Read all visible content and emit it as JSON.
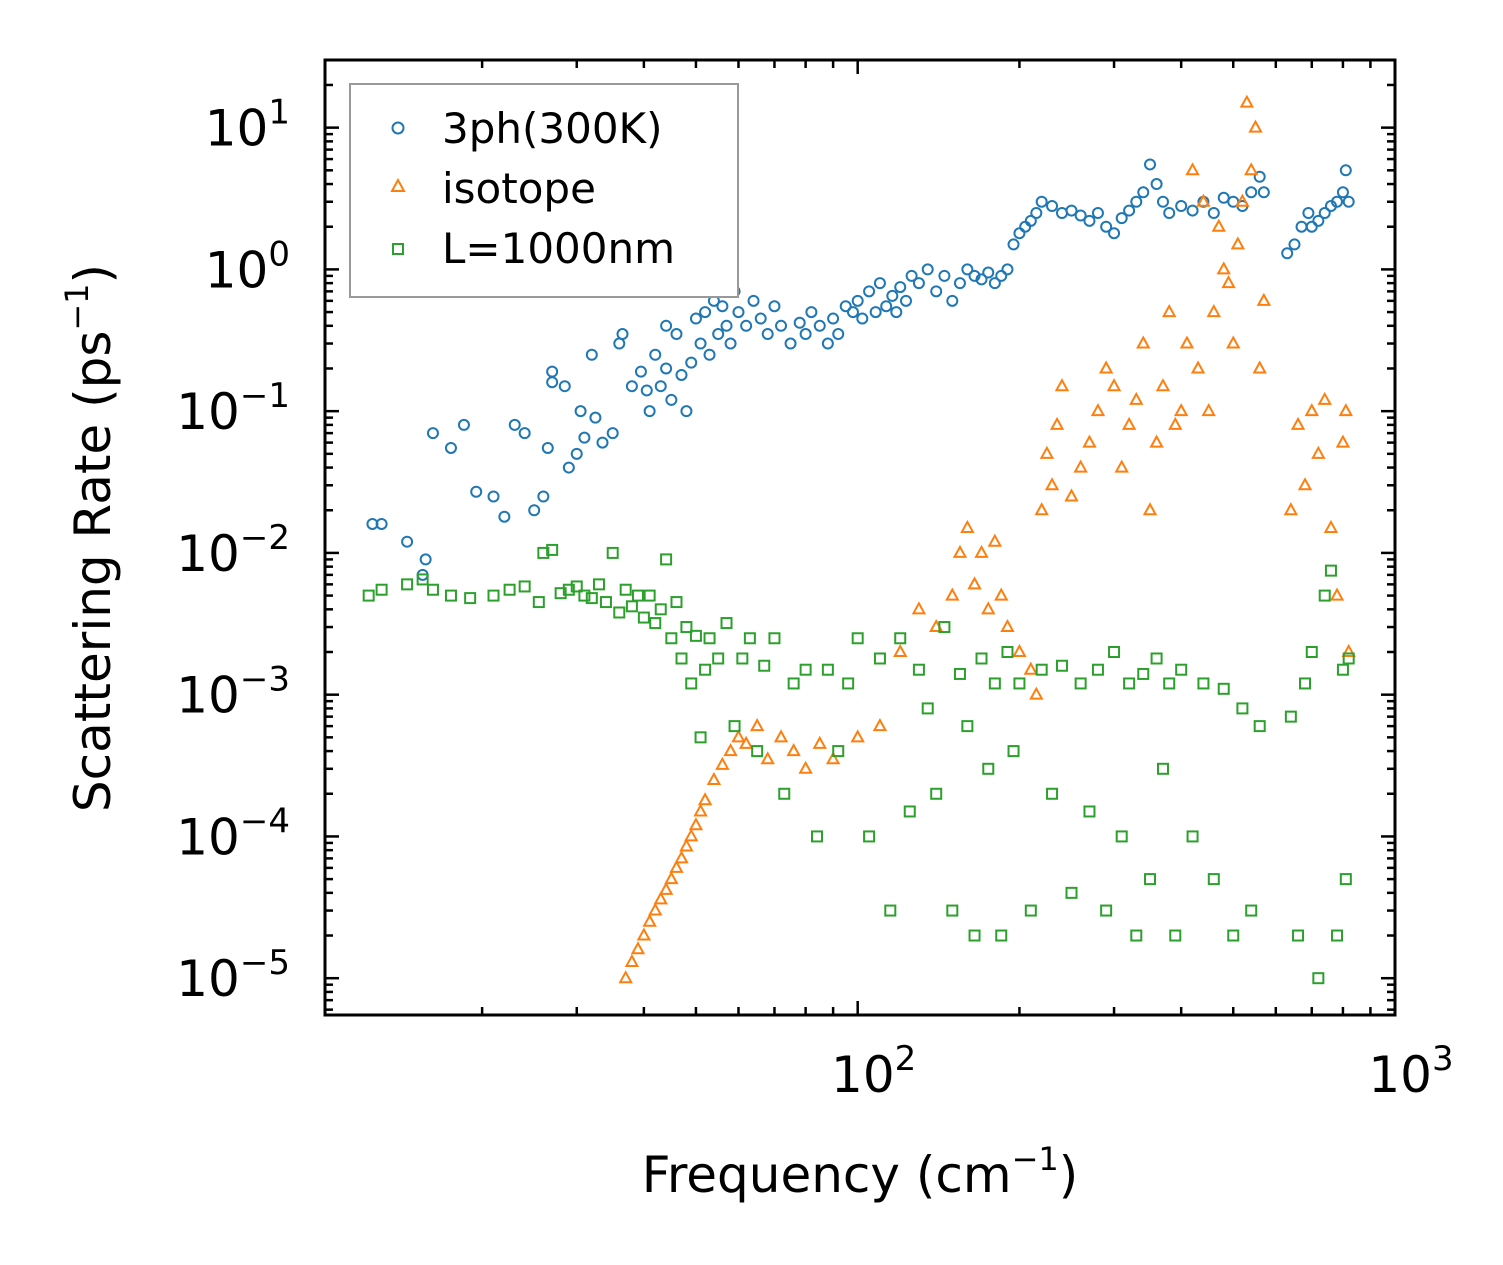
{
  "chart_data": {
    "type": "scatter",
    "title": "",
    "xlabel": "Frequency (cm",
    "xlabel_sup": "−1",
    "xlabel_end": ")",
    "ylabel": "Scattering Rate (ps",
    "ylabel_sup": "−1",
    "ylabel_end": ")",
    "xscale": "log",
    "yscale": "log",
    "xlim": [
      10.2,
      1000
    ],
    "ylim": [
      5.5e-06,
      30
    ],
    "x_ticks": [
      {
        "value": 100,
        "base": "10",
        "exp": "2"
      },
      {
        "value": 1000,
        "base": "10",
        "exp": "3"
      }
    ],
    "y_ticks": [
      {
        "value": 10,
        "base": "10",
        "exp": "1"
      },
      {
        "value": 1,
        "base": "10",
        "exp": "0"
      },
      {
        "value": 0.1,
        "base": "10",
        "exp": "−1"
      },
      {
        "value": 0.01,
        "base": "10",
        "exp": "−2"
      },
      {
        "value": 0.001,
        "base": "10",
        "exp": "−3"
      },
      {
        "value": 0.0001,
        "base": "10",
        "exp": "−4"
      },
      {
        "value": 1e-05,
        "base": "10",
        "exp": "−5"
      }
    ],
    "legend": {
      "location": "top-left",
      "entries": [
        "3ph(300K)",
        "isotope",
        "L=1000nm"
      ]
    },
    "series": [
      {
        "name": "3ph(300K)",
        "marker": "circle",
        "color": "#1f77b4",
        "x": [
          12.5,
          13.0,
          14.5,
          15.5,
          15.7,
          16.2,
          17.5,
          18.5,
          19.5,
          21.0,
          22.0,
          23.0,
          24.0,
          25.0,
          26.0,
          26.5,
          27.0,
          27.0,
          28.5,
          29.0,
          30.0,
          30.5,
          31.0,
          32.0,
          32.5,
          33.5,
          35.0,
          36.0,
          36.5,
          38.0,
          39.5,
          40.5,
          41.0,
          42.0,
          43.0,
          44.0,
          44.0,
          45.0,
          46.0,
          47.0,
          48.0,
          49.0,
          50.0,
          51.0,
          52.0,
          53.0,
          54.0,
          55.0,
          56.0,
          57.0,
          58.0,
          59.0,
          60.0,
          62.0,
          64.0,
          66.0,
          68.0,
          70.0,
          72.0,
          75.0,
          78.0,
          80.0,
          82.0,
          85.0,
          88.0,
          90.0,
          92.0,
          95.0,
          98.0,
          100.0,
          102.0,
          105.0,
          108.0,
          110.0,
          113.0,
          116.0,
          118.0,
          120.0,
          123.0,
          126.0,
          130.0,
          135.0,
          140.0,
          145.0,
          150.0,
          155.0,
          160.0,
          165.0,
          170.0,
          175.0,
          180.0,
          185.0,
          190.0,
          195.0,
          200.0,
          205.0,
          210.0,
          215.0,
          220.0,
          230.0,
          240.0,
          250.0,
          260.0,
          270.0,
          280.0,
          290.0,
          300.0,
          310.0,
          320.0,
          330.0,
          340.0,
          350.0,
          360.0,
          370.0,
          380.0,
          400.0,
          420.0,
          440.0,
          460.0,
          480.0,
          500.0,
          520.0,
          540.0,
          560.0,
          570.0,
          630.0,
          650.0,
          670.0,
          690.0,
          700.0,
          720.0,
          740.0,
          760.0,
          780.0,
          800.0,
          810.0,
          820.0
        ],
        "y": [
          0.016,
          0.016,
          0.012,
          0.007,
          0.009,
          0.07,
          0.055,
          0.08,
          0.027,
          0.025,
          0.018,
          0.08,
          0.07,
          0.02,
          0.025,
          0.055,
          0.19,
          0.16,
          0.15,
          0.04,
          0.05,
          0.1,
          0.065,
          0.25,
          0.09,
          0.06,
          0.07,
          0.3,
          0.35,
          0.15,
          0.19,
          0.14,
          0.1,
          0.25,
          0.15,
          0.2,
          0.4,
          0.12,
          0.35,
          0.18,
          0.1,
          0.22,
          0.45,
          0.3,
          0.5,
          0.25,
          0.6,
          0.35,
          0.55,
          0.4,
          0.3,
          0.7,
          0.5,
          0.4,
          0.6,
          0.45,
          0.35,
          0.55,
          0.4,
          0.3,
          0.42,
          0.35,
          0.5,
          0.4,
          0.3,
          0.45,
          0.35,
          0.55,
          0.5,
          0.6,
          0.45,
          0.7,
          0.5,
          0.8,
          0.55,
          0.65,
          0.5,
          0.75,
          0.6,
          0.9,
          0.8,
          1.0,
          0.7,
          0.9,
          0.6,
          0.8,
          1.0,
          0.9,
          0.85,
          0.95,
          0.8,
          0.9,
          1.0,
          1.5,
          1.8,
          2.0,
          2.2,
          2.5,
          3.0,
          2.8,
          2.5,
          2.6,
          2.4,
          2.2,
          2.5,
          2.0,
          1.8,
          2.3,
          2.6,
          3.0,
          3.5,
          5.5,
          4.0,
          3.0,
          2.5,
          2.8,
          2.6,
          3.0,
          2.5,
          3.2,
          3.0,
          2.8,
          3.5,
          4.5,
          3.5,
          1.3,
          1.5,
          2.0,
          2.5,
          2.0,
          2.2,
          2.5,
          2.8,
          3.0,
          3.5,
          5.0,
          3.0
        ]
      },
      {
        "name": "isotope",
        "marker": "triangle",
        "color": "#ff7f0e",
        "x": [
          37.0,
          38.0,
          39.0,
          40.0,
          41.0,
          42.0,
          43.0,
          44.0,
          45.0,
          46.0,
          47.0,
          48.0,
          49.0,
          50.0,
          51.0,
          52.0,
          54.0,
          56.0,
          58.0,
          60.0,
          62.0,
          65.0,
          68.0,
          72.0,
          76.0,
          80.0,
          85.0,
          90.0,
          100.0,
          110.0,
          120.0,
          130.0,
          140.0,
          150.0,
          155.0,
          160.0,
          165.0,
          170.0,
          175.0,
          180.0,
          185.0,
          190.0,
          200.0,
          210.0,
          215.0,
          220.0,
          225.0,
          230.0,
          235.0,
          240.0,
          250.0,
          260.0,
          270.0,
          280.0,
          290.0,
          300.0,
          310.0,
          320.0,
          330.0,
          340.0,
          350.0,
          360.0,
          370.0,
          380.0,
          390.0,
          400.0,
          410.0,
          420.0,
          430.0,
          440.0,
          450.0,
          460.0,
          470.0,
          480.0,
          490.0,
          500.0,
          510.0,
          520.0,
          530.0,
          540.0,
          550.0,
          560.0,
          570.0,
          640.0,
          660.0,
          680.0,
          700.0,
          720.0,
          740.0,
          760.0,
          780.0,
          800.0,
          810.0,
          820.0
        ],
        "y": [
          1e-05,
          1.3e-05,
          1.6e-05,
          2e-05,
          2.5e-05,
          3e-05,
          3.6e-05,
          4.2e-05,
          5e-05,
          6e-05,
          7e-05,
          8.5e-05,
          0.0001,
          0.00012,
          0.00015,
          0.00018,
          0.00025,
          0.00032,
          0.0004,
          0.0005,
          0.00045,
          0.0006,
          0.00035,
          0.0005,
          0.0004,
          0.0003,
          0.00045,
          0.00035,
          0.0005,
          0.0006,
          0.002,
          0.004,
          0.003,
          0.005,
          0.01,
          0.015,
          0.006,
          0.01,
          0.004,
          0.012,
          0.005,
          0.003,
          0.002,
          0.0015,
          0.001,
          0.02,
          0.05,
          0.03,
          0.08,
          0.15,
          0.025,
          0.04,
          0.06,
          0.1,
          0.2,
          0.15,
          0.04,
          0.08,
          0.12,
          0.3,
          0.02,
          0.06,
          0.15,
          0.5,
          0.08,
          0.1,
          0.3,
          5.0,
          0.2,
          3.0,
          0.1,
          0.5,
          2.0,
          1.0,
          0.8,
          0.3,
          1.5,
          3.0,
          15.0,
          5.0,
          10.0,
          0.2,
          0.6,
          0.02,
          0.08,
          0.03,
          0.1,
          0.05,
          0.12,
          0.015,
          0.005,
          0.06,
          0.1,
          0.002
        ]
      },
      {
        "name": "L=1000nm",
        "marker": "square",
        "color": "#2ca02c",
        "x": [
          12.3,
          13.0,
          14.5,
          15.5,
          16.2,
          17.5,
          19.0,
          21.0,
          22.5,
          24.0,
          25.5,
          26.0,
          27.0,
          28.0,
          29.0,
          30.0,
          31.0,
          32.0,
          33.0,
          34.0,
          35.0,
          36.0,
          37.0,
          38.0,
          39.0,
          40.0,
          41.0,
          42.0,
          43.0,
          44.0,
          45.0,
          46.0,
          47.0,
          48.0,
          49.0,
          50.0,
          51.0,
          52.0,
          53.0,
          55.0,
          57.0,
          59.0,
          61.0,
          63.0,
          65.0,
          67.0,
          70.0,
          73.0,
          76.0,
          80.0,
          84.0,
          88.0,
          92.0,
          96.0,
          100.0,
          105.0,
          110.0,
          115.0,
          120.0,
          125.0,
          130.0,
          135.0,
          140.0,
          145.0,
          150.0,
          155.0,
          160.0,
          165.0,
          170.0,
          175.0,
          180.0,
          185.0,
          190.0,
          195.0,
          200.0,
          210.0,
          220.0,
          230.0,
          240.0,
          250.0,
          260.0,
          270.0,
          280.0,
          290.0,
          300.0,
          310.0,
          320.0,
          330.0,
          340.0,
          350.0,
          360.0,
          370.0,
          380.0,
          390.0,
          400.0,
          420.0,
          440.0,
          460.0,
          480.0,
          500.0,
          520.0,
          540.0,
          560.0,
          640.0,
          660.0,
          680.0,
          700.0,
          720.0,
          740.0,
          760.0,
          780.0,
          800.0,
          810.0,
          820.0
        ],
        "y": [
          0.005,
          0.0055,
          0.006,
          0.0065,
          0.0055,
          0.005,
          0.0048,
          0.005,
          0.0055,
          0.0058,
          0.0045,
          0.01,
          0.0105,
          0.0052,
          0.0055,
          0.0058,
          0.005,
          0.0048,
          0.006,
          0.0045,
          0.01,
          0.0038,
          0.0055,
          0.0042,
          0.005,
          0.0035,
          0.005,
          0.0032,
          0.004,
          0.009,
          0.0025,
          0.0045,
          0.0018,
          0.003,
          0.0012,
          0.0026,
          0.0005,
          0.0015,
          0.0025,
          0.0018,
          0.0032,
          0.0006,
          0.0018,
          0.0025,
          0.0004,
          0.0016,
          0.0025,
          0.0002,
          0.0012,
          0.0015,
          0.0001,
          0.0015,
          0.0004,
          0.0012,
          0.0025,
          0.0001,
          0.0018,
          3e-05,
          0.0025,
          0.00015,
          0.0015,
          0.0008,
          0.0002,
          0.003,
          3e-05,
          0.0014,
          0.0006,
          2e-05,
          0.0018,
          0.0003,
          0.0012,
          2e-05,
          0.002,
          0.0004,
          0.0012,
          3e-05,
          0.0015,
          0.0002,
          0.0016,
          4e-05,
          0.0012,
          0.00015,
          0.0015,
          3e-05,
          0.002,
          0.0001,
          0.0012,
          2e-05,
          0.0014,
          5e-05,
          0.0018,
          0.0003,
          0.0012,
          2e-05,
          0.0015,
          0.0001,
          0.0012,
          5e-05,
          0.0011,
          2e-05,
          0.0008,
          3e-05,
          0.0006,
          0.0007,
          2e-05,
          0.0012,
          0.002,
          1e-05,
          0.005,
          0.0075,
          2e-05,
          0.0015,
          5e-05,
          0.0018
        ]
      }
    ]
  }
}
